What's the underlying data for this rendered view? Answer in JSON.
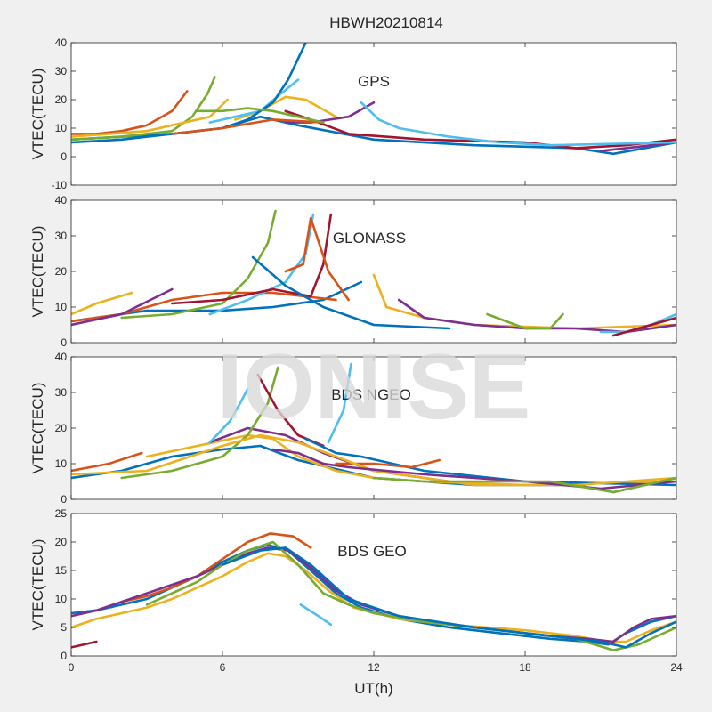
{
  "figure": {
    "title": "HBWH20210814",
    "watermark": "IONISE",
    "xlabel": "UT(h)",
    "xlim": [
      0,
      24
    ],
    "xticks": [
      0,
      6,
      12,
      18,
      24
    ],
    "colors": [
      "#0072BD",
      "#D95319",
      "#EDB120",
      "#7E2F8E",
      "#77AC30",
      "#4DBEEE",
      "#A2142F"
    ]
  },
  "chart_data": [
    {
      "type": "line",
      "annotation": "GPS",
      "ylabel": "VTEC(TECU)",
      "ylim": [
        -10,
        40
      ],
      "yticks": [
        -10,
        0,
        10,
        20,
        30,
        40
      ],
      "series": [
        {
          "x": [
            0,
            2,
            4,
            6,
            7.5,
            9,
            12,
            16,
            20,
            21.5,
            24
          ],
          "y": [
            6,
            7,
            8,
            10,
            14,
            11,
            6,
            4,
            3,
            1,
            5
          ]
        },
        {
          "x": [
            0,
            1,
            2,
            3,
            4,
            4.6
          ],
          "y": [
            8,
            8,
            9,
            11,
            16,
            23
          ]
        },
        {
          "x": [
            6.5,
            7.5,
            8.5,
            9.3,
            10.5
          ],
          "y": [
            13,
            16,
            21,
            20,
            14
          ]
        },
        {
          "x": [
            8.5,
            9.5,
            11,
            11.8,
            12
          ],
          "y": [
            12,
            12,
            14,
            18,
            19
          ]
        },
        {
          "x": [
            0,
            2,
            4,
            4.8,
            5.4,
            5.7
          ],
          "y": [
            6,
            7,
            9,
            14,
            22,
            28
          ]
        },
        {
          "x": [
            5.5,
            6.5,
            7.5,
            8.3,
            9
          ],
          "y": [
            12,
            14,
            16,
            22,
            27
          ]
        },
        {
          "x": [
            8.5,
            9.5,
            11,
            14,
            18,
            20,
            22,
            24
          ],
          "y": [
            16,
            13,
            8,
            6,
            5,
            3,
            4,
            6
          ]
        },
        {
          "x": [
            0,
            2,
            4,
            6,
            7,
            8,
            8.6,
            9.3
          ],
          "y": [
            5,
            6,
            8,
            10,
            13,
            19,
            27,
            40
          ]
        },
        {
          "x": [
            4,
            6,
            8,
            10
          ],
          "y": [
            8,
            10,
            13,
            12
          ]
        },
        {
          "x": [
            0,
            1.5,
            3,
            5.5,
            6.2
          ],
          "y": [
            7,
            8,
            9,
            14,
            20
          ]
        },
        {
          "x": [
            21,
            22,
            23,
            24
          ],
          "y": [
            2,
            3,
            4,
            5
          ]
        },
        {
          "x": [
            5,
            6,
            7,
            8,
            9,
            10
          ],
          "y": [
            16,
            16,
            17,
            16,
            14,
            12
          ]
        },
        {
          "x": [
            11.5,
            12.2,
            13,
            15,
            17,
            19,
            24
          ],
          "y": [
            19,
            13,
            10,
            7,
            5,
            4,
            5
          ]
        }
      ]
    },
    {
      "type": "line",
      "annotation": "GLONASS",
      "ylabel": "VTEC(TECU)",
      "ylim": [
        0,
        40
      ],
      "yticks": [
        0,
        10,
        20,
        30,
        40
      ],
      "series": [
        {
          "x": [
            0,
            3,
            6,
            8,
            10,
            11.5
          ],
          "y": [
            6,
            9,
            9,
            10,
            12,
            17
          ]
        },
        {
          "x": [
            0,
            2,
            4,
            6,
            8,
            10.5
          ],
          "y": [
            6,
            8,
            12,
            14,
            14,
            12
          ]
        },
        {
          "x": [
            0,
            1,
            2.4
          ],
          "y": [
            8,
            11,
            14
          ]
        },
        {
          "x": [
            0,
            2,
            4
          ],
          "y": [
            5,
            8,
            15
          ]
        },
        {
          "x": [
            2,
            4,
            6,
            7,
            7.8,
            8.1
          ],
          "y": [
            7,
            8,
            11,
            18,
            28,
            37
          ]
        },
        {
          "x": [
            5.5,
            7,
            8.5,
            9.3,
            9.6
          ],
          "y": [
            8,
            12,
            17,
            25,
            36
          ]
        },
        {
          "x": [
            4,
            6,
            8,
            9.5,
            10,
            10.3
          ],
          "y": [
            11,
            12,
            15,
            13,
            22,
            36
          ]
        },
        {
          "x": [
            7.2,
            8.5,
            10,
            12,
            15
          ],
          "y": [
            24,
            16,
            10,
            5,
            4
          ]
        },
        {
          "x": [
            8.5,
            9.2,
            9.5,
            10.2,
            11
          ],
          "y": [
            20,
            22,
            35,
            20,
            12
          ]
        },
        {
          "x": [
            12,
            12.5,
            14,
            16,
            20,
            24
          ],
          "y": [
            19,
            10,
            7,
            5,
            4,
            5
          ]
        },
        {
          "x": [
            13,
            14,
            16,
            18,
            20,
            22,
            24
          ],
          "y": [
            12,
            7,
            5,
            4,
            4,
            3,
            5
          ]
        },
        {
          "x": [
            16.5,
            18,
            19,
            19.5
          ],
          "y": [
            8,
            4,
            4,
            8
          ]
        },
        {
          "x": [
            21,
            22,
            23,
            24
          ],
          "y": [
            3,
            3,
            5,
            8
          ]
        },
        {
          "x": [
            21.5,
            22.5,
            24
          ],
          "y": [
            2,
            4,
            7
          ]
        }
      ]
    },
    {
      "type": "line",
      "annotation": "BDS NGEO",
      "ylabel": "VTEC(TECU)",
      "ylim": [
        0,
        40
      ],
      "yticks": [
        0,
        10,
        20,
        30,
        40
      ],
      "series": [
        {
          "x": [
            0,
            2,
            4,
            6,
            7.5,
            9,
            12,
            16,
            20,
            21.5,
            24
          ],
          "y": [
            6,
            8,
            12,
            14,
            15,
            11,
            6,
            4,
            4,
            2,
            6
          ]
        },
        {
          "x": [
            0,
            1.5,
            2.8
          ],
          "y": [
            8,
            10,
            13
          ]
        },
        {
          "x": [
            3,
            5,
            7,
            8,
            9,
            10.5,
            12,
            14,
            18,
            24
          ],
          "y": [
            12,
            15,
            18,
            17,
            12,
            8,
            6,
            5,
            4,
            5
          ]
        },
        {
          "x": [
            5.5,
            7,
            8.5,
            10,
            12,
            15
          ],
          "y": [
            16,
            20,
            18,
            13,
            8,
            5
          ]
        },
        {
          "x": [
            2,
            4,
            6,
            7,
            7.8,
            8.2
          ],
          "y": [
            6,
            8,
            12,
            18,
            27,
            37
          ]
        },
        {
          "x": [
            5.5,
            6.3,
            6.7,
            7
          ],
          "y": [
            16,
            22,
            27,
            31
          ]
        },
        {
          "x": [
            7.4,
            8.2,
            9,
            10
          ],
          "y": [
            35,
            25,
            18,
            15
          ]
        },
        {
          "x": [
            9.3,
            10.5,
            11.5,
            14,
            18,
            24
          ],
          "y": [
            17,
            13,
            12,
            8,
            5,
            4
          ]
        },
        {
          "x": [
            10.5,
            12,
            13.5,
            14.6
          ],
          "y": [
            10,
            10,
            9,
            11
          ]
        },
        {
          "x": [
            0,
            3,
            6,
            7.5,
            9,
            12,
            16,
            20,
            24
          ],
          "y": [
            7,
            8,
            15,
            18,
            16,
            8,
            4,
            4,
            6
          ]
        },
        {
          "x": [
            8,
            9,
            10,
            11,
            14,
            18,
            21,
            24
          ],
          "y": [
            14,
            13,
            10,
            9,
            7,
            5,
            3,
            5
          ]
        },
        {
          "x": [
            12,
            14,
            17,
            19,
            21.5,
            24
          ],
          "y": [
            6,
            5,
            5,
            5,
            2,
            6
          ]
        },
        {
          "x": [
            10.2,
            10.8,
            11.1
          ],
          "y": [
            16,
            25,
            38
          ]
        }
      ]
    },
    {
      "type": "line",
      "annotation": "BDS GEO",
      "ylabel": "VTEC(TECU)",
      "ylim": [
        0,
        25
      ],
      "yticks": [
        0,
        5,
        10,
        15,
        20,
        25
      ],
      "series": [
        {
          "x": [
            0,
            1,
            2,
            3,
            4,
            5,
            6,
            7,
            7.8,
            8.6,
            9.5,
            10.5,
            11.5,
            13,
            15,
            17,
            19,
            20.5,
            21.3,
            22,
            23,
            24
          ],
          "y": [
            7.5,
            8,
            9,
            10,
            12,
            14,
            16.5,
            18.5,
            19.5,
            18.5,
            15,
            11,
            8.5,
            6.5,
            5,
            4,
            3,
            2.5,
            2,
            4,
            6,
            7
          ]
        },
        {
          "x": [
            2,
            3,
            4,
            5,
            6,
            7,
            7.9,
            8.8,
            9.5
          ],
          "y": [
            9.5,
            10.5,
            12,
            14,
            17,
            20,
            21.5,
            21,
            19
          ]
        },
        {
          "x": [
            0,
            1,
            2,
            3,
            4,
            5,
            6,
            7,
            7.8,
            8.5,
            9.3,
            10.2,
            11.2,
            13,
            15,
            18,
            20,
            21.2,
            22,
            23,
            24
          ],
          "y": [
            5,
            6.5,
            7.5,
            8.5,
            10,
            12,
            14,
            16.5,
            18,
            17.5,
            15,
            11.5,
            8.5,
            6.5,
            5.5,
            4.5,
            3.5,
            2.5,
            2.5,
            4.5,
            6
          ]
        },
        {
          "x": [
            0,
            1,
            2,
            3,
            4,
            5,
            6,
            7,
            7.8,
            8.6,
            9.5,
            10.5,
            11.5,
            13,
            15,
            17,
            19,
            20.5,
            21.5,
            22.3,
            23,
            24
          ],
          "y": [
            7,
            8,
            9.5,
            11,
            12.5,
            14,
            16,
            18,
            19,
            18.5,
            15.5,
            11.5,
            9,
            7,
            5.5,
            4.5,
            3.5,
            3,
            2.5,
            5,
            6.5,
            7
          ]
        },
        {
          "x": [
            3,
            4,
            5,
            6,
            7,
            8,
            9,
            10,
            11,
            12,
            14,
            16,
            18,
            20,
            21.5,
            22.5,
            24
          ],
          "y": [
            9,
            11,
            13,
            16,
            18.5,
            20,
            16,
            11,
            9,
            7.5,
            6,
            5,
            4,
            3,
            1,
            2,
            5
          ]
        },
        {
          "x": [
            9.1,
            9.8,
            10.3
          ],
          "y": [
            9,
            7,
            5.5
          ]
        },
        {
          "x": [
            0,
            1
          ],
          "y": [
            1.5,
            2.5
          ]
        },
        {
          "x": [
            6,
            7.5,
            8.5,
            9.5,
            11,
            13,
            16,
            19,
            21,
            22,
            23,
            24
          ],
          "y": [
            16,
            18.5,
            19,
            16,
            10,
            7,
            5,
            3.5,
            2.5,
            1.5,
            4,
            6
          ]
        }
      ]
    }
  ]
}
